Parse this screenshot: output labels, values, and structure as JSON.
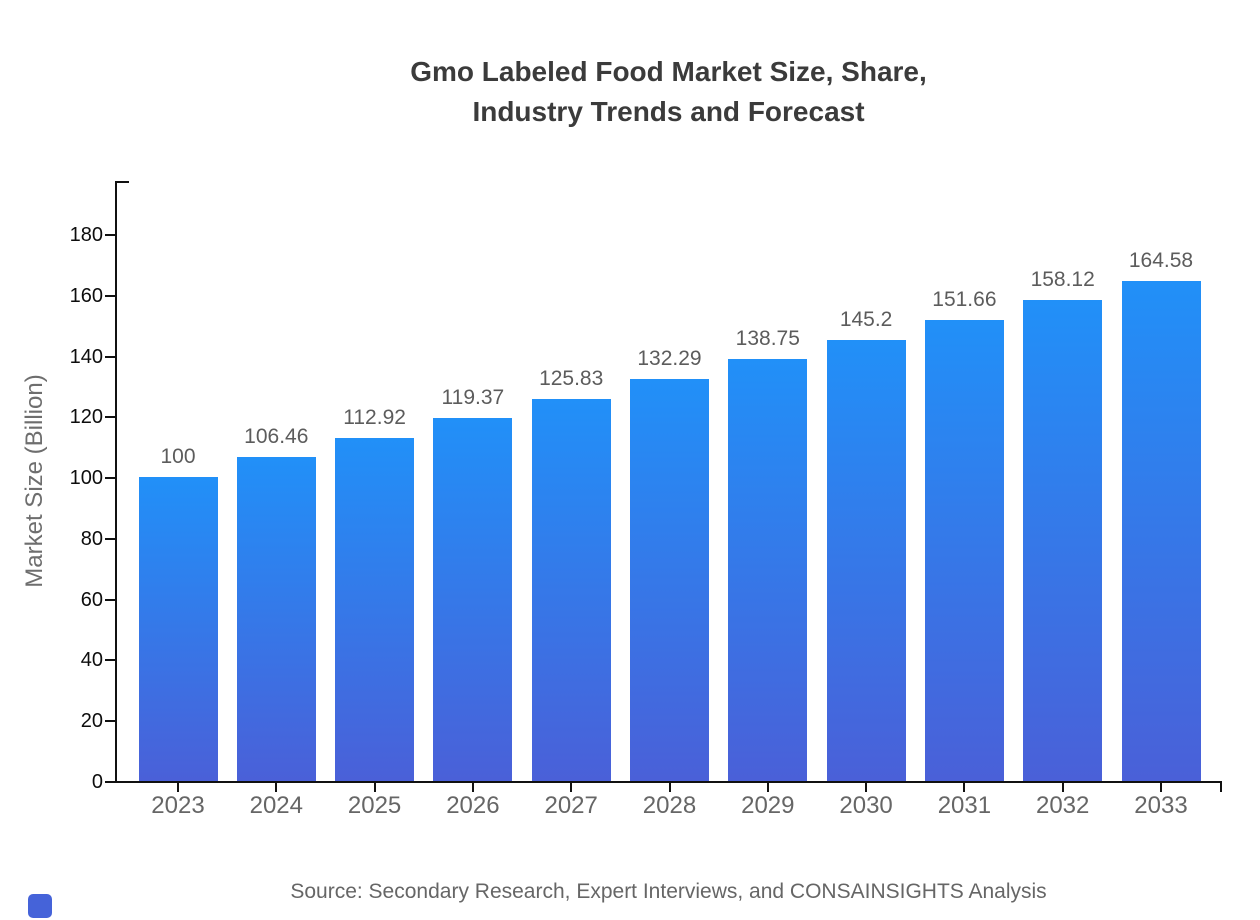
{
  "page": {
    "background": "#ffffff"
  },
  "chart": {
    "title": "Gmo Labeled Food Market Size, Share,\nIndustry Trends and Forecast",
    "y_axis_label": "Market Size (Billion)",
    "source_note": "Source: Secondary Research, Expert Interviews, and CONSAINSIGHTS Analysis"
  },
  "chart_data": {
    "type": "bar",
    "title": "Gmo Labeled Food Market Size, Share, Industry Trends and Forecast",
    "categories": [
      "2023",
      "2024",
      "2025",
      "2026",
      "2027",
      "2028",
      "2029",
      "2030",
      "2031",
      "2032",
      "2033"
    ],
    "values": [
      100,
      106.46,
      112.92,
      119.37,
      125.83,
      132.29,
      138.75,
      145.2,
      151.66,
      158.12,
      164.58
    ],
    "xlabel": "",
    "ylabel": "Market Size (Billion)",
    "ylim": [
      0,
      180
    ],
    "ytick_interval": 20,
    "ytick_labels": [
      "0",
      "20",
      "40",
      "60",
      "80",
      "100",
      "120",
      "140",
      "160",
      "180"
    ],
    "grid": false,
    "legend": "none",
    "bar_value_labels_shown": true,
    "colors": {
      "bar_gradient_top": "#2190f8",
      "bar_gradient_bottom": "#4a60d8",
      "axis": "#111111",
      "ytick_text": "#0d0d0d",
      "xtick_text": "#666666",
      "value_label_text": "#5c5c5c",
      "title_text": "#3b3b3b",
      "axis_label_text": "#6e6e6e",
      "source_text": "#666666"
    }
  },
  "brand": {
    "mark_color": "#4563d9"
  }
}
